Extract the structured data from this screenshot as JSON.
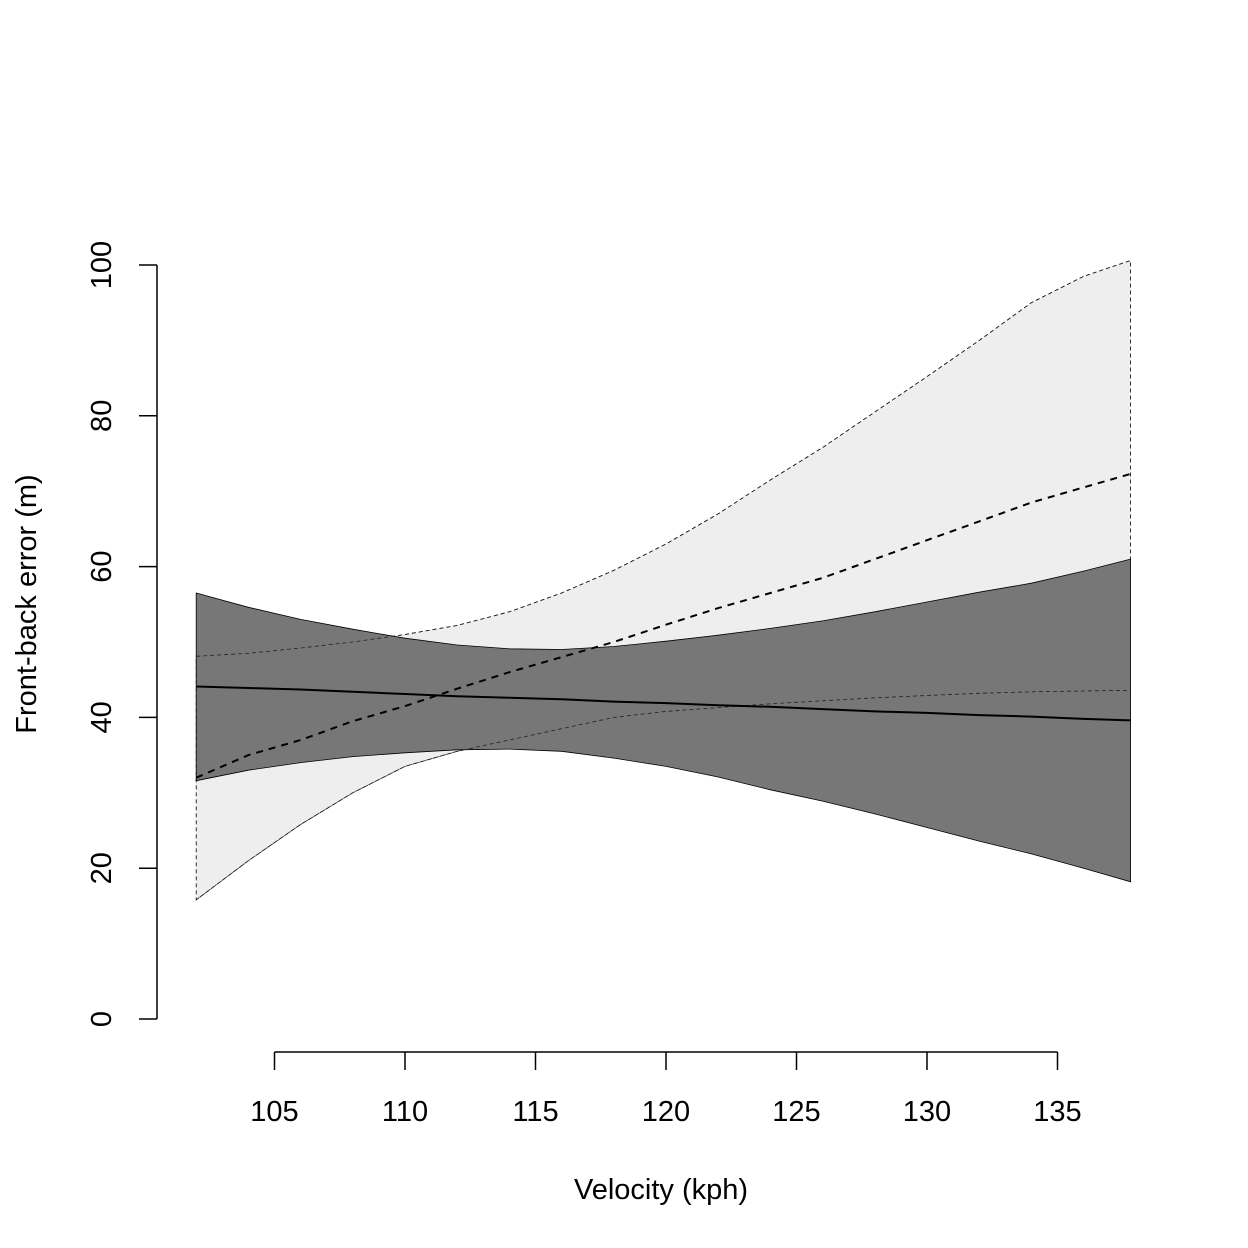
{
  "chart_data": {
    "type": "line",
    "title": "",
    "xlabel": "Velocity (kph)",
    "ylabel": "Front-back error (m)",
    "xlim": [
      102,
      138
    ],
    "ylim": [
      0,
      100
    ],
    "x_ticks": [
      105,
      110,
      115,
      120,
      125,
      130,
      135
    ],
    "y_ticks": [
      0,
      20,
      40,
      60,
      80,
      100
    ],
    "grid": false,
    "legend": "none",
    "x": [
      102,
      104,
      106,
      108,
      110,
      112,
      114,
      116,
      118,
      120,
      122,
      124,
      126,
      128,
      130,
      132,
      134,
      136,
      137.8
    ],
    "series": [
      {
        "style": "solid",
        "line_color": "#000000",
        "band_color": "#777777",
        "values": [
          44.1,
          43.9,
          43.7,
          43.4,
          43.1,
          42.8,
          42.6,
          42.4,
          42.1,
          41.9,
          41.6,
          41.4,
          41.1,
          40.8,
          40.6,
          40.3,
          40.1,
          39.8,
          39.6
        ],
        "upper": [
          56.5,
          54.6,
          53.0,
          51.7,
          50.5,
          49.6,
          49.1,
          49.0,
          49.4,
          50.1,
          50.9,
          51.8,
          52.8,
          54.0,
          55.3,
          56.6,
          57.8,
          59.4,
          61.0
        ],
        "lower": [
          31.6,
          33.0,
          34.0,
          34.8,
          35.3,
          35.7,
          35.8,
          35.5,
          34.6,
          33.5,
          32.1,
          30.4,
          28.9,
          27.2,
          25.4,
          23.6,
          21.9,
          20.0,
          18.2
        ]
      },
      {
        "style": "dashed",
        "line_color": "#000000",
        "band_color": "#eeeeee",
        "values": [
          32.0,
          35.0,
          37.0,
          39.5,
          41.5,
          43.8,
          46.0,
          48.0,
          50.0,
          52.3,
          54.5,
          56.5,
          58.5,
          61.0,
          63.5,
          66.0,
          68.5,
          70.5,
          72.3
        ],
        "upper": [
          48.1,
          48.5,
          49.2,
          50.0,
          51.0,
          52.2,
          54.0,
          56.5,
          59.5,
          63.0,
          67.0,
          71.5,
          75.8,
          80.5,
          85.2,
          90.0,
          95.0,
          98.5,
          100.6
        ],
        "lower": [
          15.8,
          21.0,
          25.8,
          30.0,
          33.5,
          35.5,
          37.0,
          38.5,
          40.0,
          40.8,
          41.3,
          41.8,
          42.2,
          42.6,
          42.9,
          43.2,
          43.4,
          43.5,
          43.6
        ]
      }
    ]
  }
}
